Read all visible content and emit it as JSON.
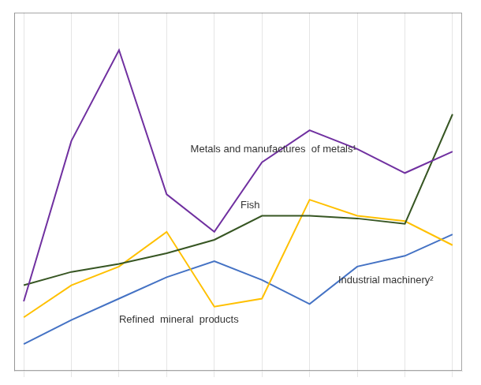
{
  "chart_data": {
    "type": "line",
    "x": [
      0,
      1,
      2,
      3,
      4,
      5,
      6,
      7,
      8,
      9
    ],
    "series": [
      {
        "name": "Metals and manufactures  of metals¹",
        "color": "#7030a0",
        "values": [
          1.8,
          4.8,
          6.5,
          3.8,
          3.1,
          4.4,
          5.0,
          4.65,
          4.2,
          4.6
        ]
      },
      {
        "name": "Fish",
        "color": "#375623",
        "values": [
          2.1,
          2.35,
          2.5,
          2.7,
          2.95,
          3.4,
          3.4,
          3.35,
          3.25,
          5.3
        ]
      },
      {
        "name": "Refined  mineral  products",
        "color": "#ffc000",
        "values": [
          1.5,
          2.1,
          2.45,
          3.1,
          1.7,
          1.85,
          3.7,
          3.4,
          3.3,
          2.85
        ]
      },
      {
        "name": "Industrial machinery²",
        "color": "#4472c4",
        "values": [
          1.0,
          1.45,
          1.85,
          2.25,
          2.55,
          2.2,
          1.75,
          2.45,
          2.65,
          3.05
        ]
      }
    ],
    "annotations": [
      {
        "x": 3.5,
        "y": 4.55,
        "text": "Metals and manufactures  of metals¹"
      },
      {
        "x": 4.55,
        "y": 3.5,
        "text": "Fish"
      },
      {
        "x": 2.0,
        "y": 1.35,
        "text": "Refined  mineral  products"
      },
      {
        "x": 6.6,
        "y": 2.1,
        "text": "Industrial machinery²"
      }
    ],
    "xlim": [
      -0.2,
      9.2
    ],
    "xticks": [
      0,
      1,
      2,
      3,
      4,
      5,
      6,
      7,
      8,
      9
    ],
    "ylim": [
      0.5,
      7.2
    ],
    "yticks": [],
    "grid": true,
    "tick_labels": false
  }
}
